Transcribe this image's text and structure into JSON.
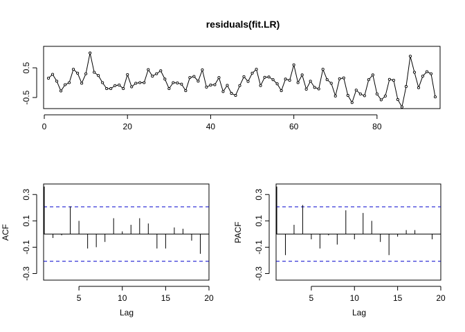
{
  "chart_data": [
    {
      "type": "line",
      "title": "residuals(fit.LR)",
      "xlabel": "",
      "ylabel": "",
      "xlim": [
        0,
        95
      ],
      "ylim": [
        -0.85,
        1.2
      ],
      "x_ticks": [
        0,
        20,
        40,
        60,
        80
      ],
      "y_ticks": [
        0.5,
        -0.5
      ],
      "x_tick_labels": [
        "0",
        "20",
        "40",
        "60",
        "80"
      ],
      "y_tick_labels": [
        "0.5",
        "-0.5"
      ],
      "series": [
        {
          "x": [
            1,
            2,
            3,
            4,
            5,
            6,
            7,
            8,
            9,
            10,
            11,
            12,
            13,
            14,
            15,
            16,
            17,
            18,
            19,
            20,
            21,
            22,
            23,
            24,
            25,
            26,
            27,
            28,
            29,
            30,
            31,
            32,
            33,
            34,
            35,
            36,
            37,
            38,
            39,
            40,
            41,
            42,
            43,
            44,
            45,
            46,
            47,
            48,
            49,
            50,
            51,
            52,
            53,
            54,
            55,
            56,
            57,
            58,
            59,
            60,
            61,
            62,
            63,
            64,
            65,
            66,
            67,
            68,
            69,
            70,
            71,
            72,
            73,
            74,
            75,
            76,
            77,
            78,
            79,
            80,
            81,
            82,
            83,
            84,
            85,
            86,
            87,
            88,
            89,
            90,
            91,
            92,
            93,
            94
          ],
          "values": [
            0.15,
            0.28,
            0.05,
            -0.28,
            -0.07,
            0.0,
            0.45,
            0.32,
            -0.02,
            0.3,
            1.0,
            0.35,
            0.24,
            0.0,
            -0.2,
            -0.2,
            -0.1,
            -0.08,
            -0.2,
            0.27,
            -0.14,
            -0.02,
            0.0,
            0.0,
            0.44,
            0.22,
            0.3,
            0.4,
            0.12,
            -0.2,
            0.0,
            -0.01,
            -0.05,
            -0.27,
            0.17,
            0.21,
            0.05,
            0.43,
            -0.15,
            -0.08,
            -0.07,
            0.17,
            -0.3,
            -0.09,
            -0.36,
            -0.43,
            -0.1,
            0.2,
            0.04,
            0.32,
            0.45,
            -0.1,
            0.18,
            0.19,
            0.1,
            -0.04,
            -0.27,
            0.12,
            0.08,
            0.6,
            0.0,
            0.26,
            -0.22,
            0.05,
            -0.16,
            -0.21,
            0.45,
            0.1,
            -0.02,
            -0.45,
            0.13,
            0.16,
            -0.43,
            -0.67,
            -0.25,
            -0.38,
            -0.44,
            0.1,
            0.26,
            -0.38,
            -0.58,
            -0.45,
            0.11,
            0.08,
            -0.57,
            -0.82,
            -0.13,
            0.89,
            0.35,
            -0.17,
            0.22,
            0.37,
            0.3,
            -0.48
          ]
        }
      ]
    },
    {
      "type": "bar",
      "title": "",
      "xlabel": "Lag",
      "ylabel": "ACF",
      "xlim": [
        1,
        20
      ],
      "ylim": [
        -0.35,
        0.38
      ],
      "x_ticks": [
        5,
        10,
        15,
        20
      ],
      "y_ticks": [
        -0.3,
        -0.1,
        0.1,
        0.3
      ],
      "x_tick_labels": [
        "5",
        "10",
        "15",
        "20"
      ],
      "y_tick_labels": [
        "-0.3",
        "-0.1",
        "0.1",
        "0.3"
      ],
      "confidence_bounds": [
        0.207,
        -0.207
      ],
      "bound_color": "#0000cc",
      "lags": [
        1,
        2,
        3,
        4,
        5,
        6,
        7,
        8,
        9,
        10,
        11,
        12,
        13,
        14,
        15,
        16,
        17,
        18,
        19,
        20
      ],
      "values": [
        0.36,
        -0.03,
        -0.01,
        0.21,
        0.1,
        -0.11,
        -0.1,
        -0.06,
        0.12,
        0.02,
        0.07,
        0.12,
        0.08,
        -0.11,
        -0.11,
        0.05,
        0.04,
        -0.05,
        -0.15,
        -0.01
      ]
    },
    {
      "type": "bar",
      "title": "",
      "xlabel": "Lag",
      "ylabel": "PACF",
      "xlim": [
        1,
        20
      ],
      "ylim": [
        -0.35,
        0.38
      ],
      "x_ticks": [
        5,
        10,
        15,
        20
      ],
      "y_ticks": [
        -0.3,
        -0.1,
        0.1,
        0.3
      ],
      "x_tick_labels": [
        "5",
        "10",
        "15",
        "20"
      ],
      "y_tick_labels": [
        "-0.3",
        "-0.1",
        "0.1",
        "0.3"
      ],
      "confidence_bounds": [
        0.207,
        -0.207
      ],
      "bound_color": "#0000cc",
      "lags": [
        1,
        2,
        3,
        4,
        5,
        6,
        7,
        8,
        9,
        10,
        11,
        12,
        13,
        14,
        15,
        16,
        17,
        18,
        19,
        20
      ],
      "values": [
        0.36,
        -0.16,
        0.07,
        0.22,
        -0.04,
        -0.11,
        -0.01,
        -0.08,
        0.18,
        -0.04,
        0.16,
        0.1,
        -0.06,
        -0.16,
        -0.02,
        0.03,
        0.03,
        0.0,
        -0.04,
        0.03
      ]
    }
  ]
}
